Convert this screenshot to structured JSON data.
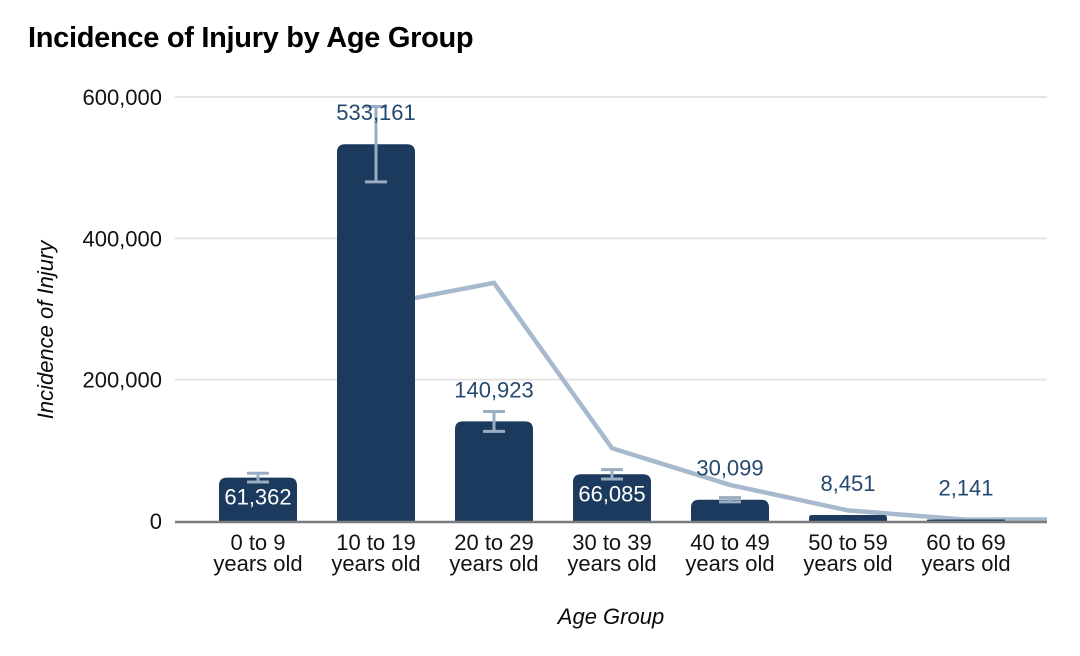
{
  "chart_data": {
    "type": "combo-bar-line",
    "title": "Incidence of Injury by Age Group",
    "xlabel": "Age Group",
    "ylabel": "Incidence of Injury",
    "categories": [
      "0 to 9 years old",
      "10 to 19 years old",
      "20 to 29 years old",
      "30 to 39 years old",
      "40 to 49 years old",
      "50 to 59 years old",
      "60 to 69 years old"
    ],
    "category_label_lines": [
      [
        "0 to 9",
        "years old"
      ],
      [
        "10 to 19",
        "years old"
      ],
      [
        "20 to 29",
        "years old"
      ],
      [
        "30 to 39",
        "years old"
      ],
      [
        "40 to 49",
        "years old"
      ],
      [
        "50 to 59",
        "years old"
      ],
      [
        "60 to 69",
        "years old"
      ]
    ],
    "series": [
      {
        "name": "incidence-of-injury-bars",
        "type": "bar",
        "values": [
          61362,
          533161,
          140923,
          66085,
          30099,
          8451,
          2141
        ],
        "data_labels": [
          "61,362",
          "533,161",
          "140,923",
          "66,085",
          "30,099",
          "8,451",
          "2,141"
        ],
        "label_placement": [
          "inside",
          "above",
          "above",
          "inside",
          "above",
          "above",
          "above"
        ],
        "error_bars_pct": 10
      },
      {
        "name": "unlabeled-trend-line",
        "type": "line",
        "values": [
          null,
          305000,
          337000,
          103000,
          51000,
          15000,
          2000
        ],
        "estimated": true,
        "extends_to_right_edge": true
      }
    ],
    "ylim": [
      0,
      600000
    ],
    "yticks": [
      0,
      200000,
      400000,
      600000
    ],
    "ytick_labels": [
      "0",
      "200,000",
      "400,000",
      "600,000"
    ],
    "grid": "horizontal",
    "legend": "none",
    "colors": {
      "bar": "#1b3a5e",
      "line": "#a7b9cd",
      "error_bar": "#9aadc2",
      "grid_line": "#e4e4e4",
      "axis_line": "#7d7d7d",
      "data_label_dark": "#26496f",
      "data_label_light": "#ffffff",
      "axis_text": "#131313",
      "title_text": "#000000"
    }
  }
}
